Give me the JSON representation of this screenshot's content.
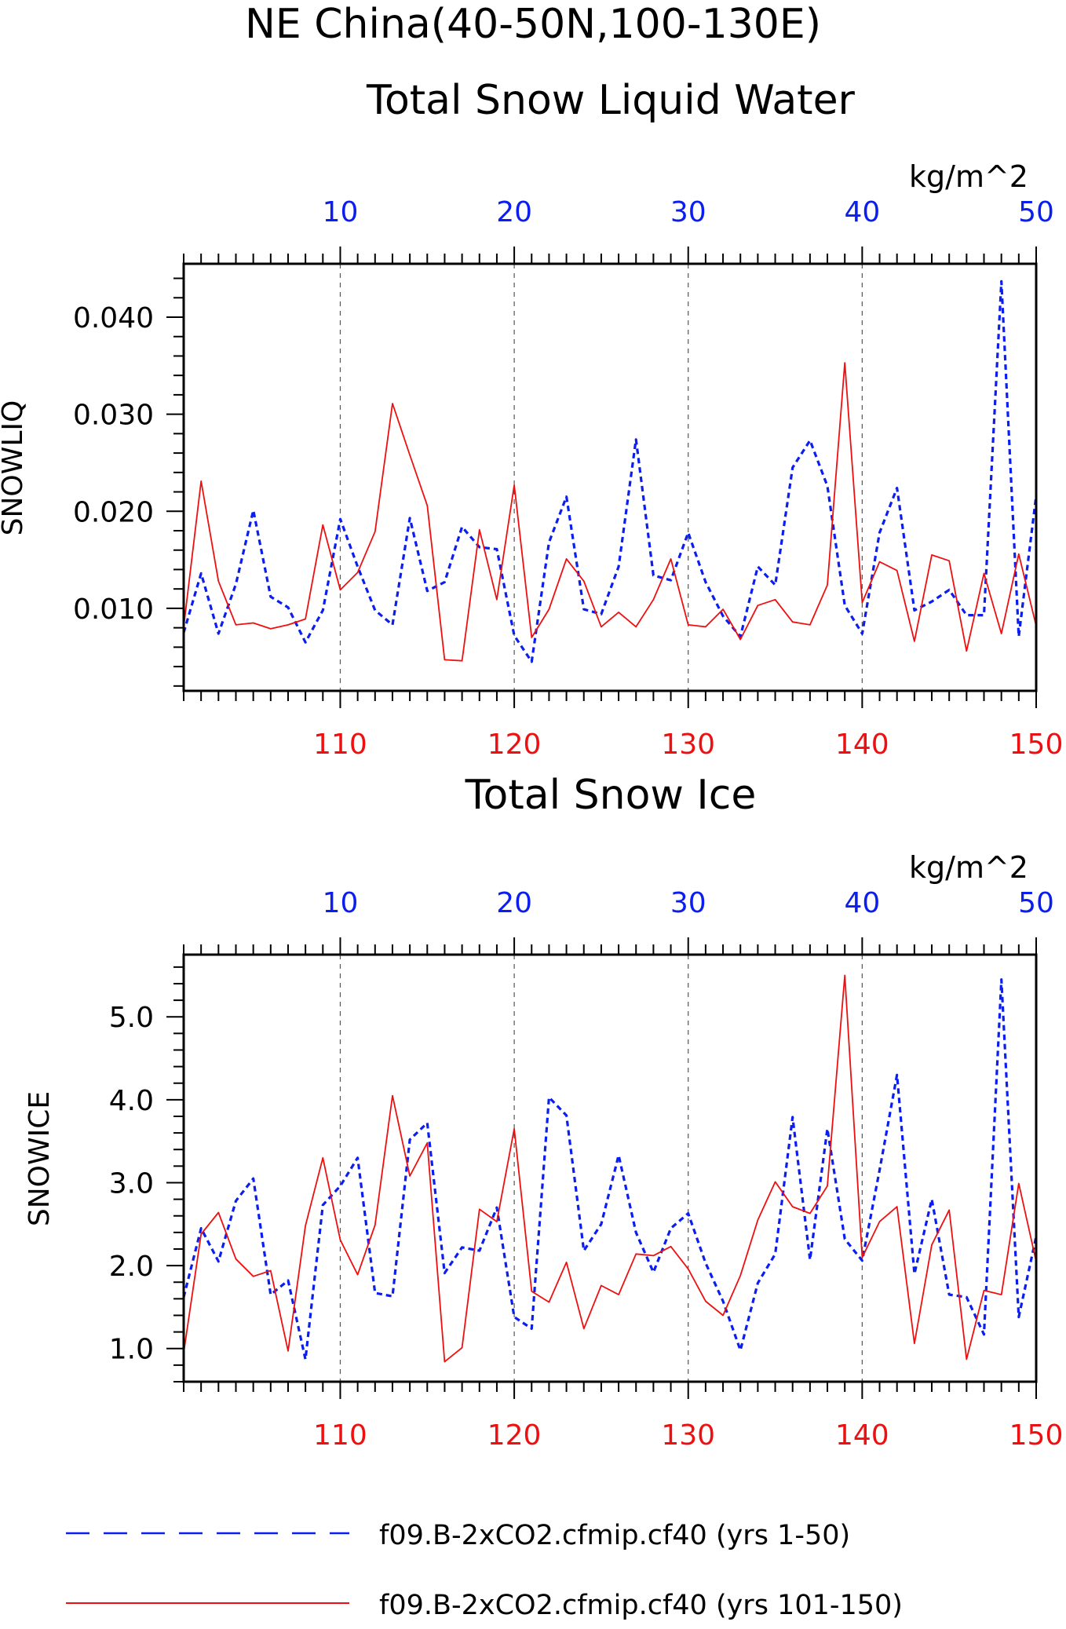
{
  "page": {
    "title_line1": "NE China(40-50N,100-130E)"
  },
  "colors": {
    "blue": "#0b1ef0",
    "red": "#ee1010",
    "axis": "#000000"
  },
  "legend": [
    {
      "label": "f09.B-2xCO2.cfmip.cf40 (yrs 1-50)",
      "color": "#0b1ef0",
      "style": "dashed"
    },
    {
      "label": "f09.B-2xCO2.cfmip.cf40 (yrs 101-150)",
      "color": "#ee1010",
      "style": "solid"
    }
  ],
  "chart_data": [
    {
      "type": "line",
      "title": "Total Snow Liquid Water",
      "ylabel": "SNOWLIQ",
      "units": "kg/m^2",
      "top_axis": {
        "ticks": [
          10,
          20,
          30,
          40,
          50
        ],
        "labels": [
          "10",
          "20",
          "30",
          "40",
          "50"
        ],
        "range": [
          1,
          50
        ]
      },
      "bottom_axis": {
        "ticks": [
          110,
          120,
          130,
          140,
          150
        ],
        "labels": [
          "110",
          "120",
          "130",
          "140",
          "150"
        ],
        "range": [
          101,
          150
        ]
      },
      "ylim": [
        0.0015,
        0.0455
      ],
      "yticks": [
        0.01,
        0.02,
        0.03,
        0.04
      ],
      "ytick_labels": [
        "0.010",
        "0.020",
        "0.030",
        "0.040"
      ],
      "ytick_minor_step": 0.002,
      "grid": "dashed vertical at labeled ticks",
      "series": [
        {
          "name": "f09.B-2xCO2.cfmip.cf40 (yrs 1-50)",
          "axis": "top",
          "style": "dashed",
          "x": [
            1,
            2,
            3,
            4,
            5,
            6,
            7,
            8,
            9,
            10,
            11,
            12,
            13,
            14,
            15,
            16,
            17,
            18,
            19,
            20,
            21,
            22,
            23,
            24,
            25,
            26,
            27,
            28,
            29,
            30,
            31,
            32,
            33,
            34,
            35,
            36,
            37,
            38,
            39,
            40,
            41,
            42,
            43,
            44,
            45,
            46,
            47,
            48,
            49,
            50
          ],
          "values": [
            0.0075,
            0.0136,
            0.0074,
            0.0125,
            0.0201,
            0.0112,
            0.0101,
            0.0065,
            0.0098,
            0.0192,
            0.0143,
            0.0098,
            0.0083,
            0.0193,
            0.0118,
            0.0127,
            0.0184,
            0.0163,
            0.0161,
            0.0072,
            0.0045,
            0.0168,
            0.0215,
            0.0099,
            0.0094,
            0.0143,
            0.0274,
            0.0134,
            0.0129,
            0.0178,
            0.0127,
            0.0092,
            0.0071,
            0.0143,
            0.0124,
            0.0245,
            0.0273,
            0.0226,
            0.0103,
            0.0074,
            0.0178,
            0.0224,
            0.0098,
            0.0107,
            0.0119,
            0.0093,
            0.0093,
            0.0437,
            0.0071,
            0.0216
          ]
        },
        {
          "name": "f09.B-2xCO2.cfmip.cf40 (yrs 101-150)",
          "axis": "bottom",
          "style": "solid",
          "x": [
            101,
            102,
            103,
            104,
            105,
            106,
            107,
            108,
            109,
            110,
            111,
            112,
            113,
            114,
            115,
            116,
            117,
            118,
            119,
            120,
            121,
            122,
            123,
            124,
            125,
            126,
            127,
            128,
            129,
            130,
            131,
            132,
            133,
            134,
            135,
            136,
            137,
            138,
            139,
            140,
            141,
            142,
            143,
            144,
            145,
            146,
            147,
            148,
            149,
            150
          ],
          "values": [
            0.0081,
            0.0231,
            0.0128,
            0.0083,
            0.0085,
            0.0079,
            0.0083,
            0.0089,
            0.0186,
            0.0119,
            0.0137,
            0.0179,
            0.0311,
            0.0258,
            0.0206,
            0.0047,
            0.0046,
            0.0181,
            0.0109,
            0.0227,
            0.007,
            0.0099,
            0.0151,
            0.0128,
            0.0081,
            0.0096,
            0.0081,
            0.0109,
            0.0151,
            0.0083,
            0.0081,
            0.0099,
            0.0068,
            0.0103,
            0.0109,
            0.0086,
            0.0083,
            0.0124,
            0.0353,
            0.0106,
            0.0148,
            0.0139,
            0.0066,
            0.0155,
            0.0149,
            0.0056,
            0.0136,
            0.0074,
            0.0156,
            0.0082
          ]
        }
      ]
    },
    {
      "type": "line",
      "title": "Total Snow Ice",
      "ylabel": "SNOWICE",
      "units": "kg/m^2",
      "top_axis": {
        "ticks": [
          10,
          20,
          30,
          40,
          50
        ],
        "labels": [
          "10",
          "20",
          "30",
          "40",
          "50"
        ],
        "range": [
          1,
          50
        ]
      },
      "bottom_axis": {
        "ticks": [
          110,
          120,
          130,
          140,
          150
        ],
        "labels": [
          "110",
          "120",
          "130",
          "140",
          "150"
        ],
        "range": [
          101,
          150
        ]
      },
      "ylim": [
        0.6,
        5.75
      ],
      "yticks": [
        1.0,
        2.0,
        3.0,
        4.0,
        5.0
      ],
      "ytick_labels": [
        "1.0",
        "2.0",
        "3.0",
        "4.0",
        "5.0"
      ],
      "ytick_minor_step": 0.2,
      "grid": "dashed vertical at labeled ticks",
      "series": [
        {
          "name": "f09.B-2xCO2.cfmip.cf40 (yrs 1-50)",
          "axis": "top",
          "style": "dashed",
          "x": [
            1,
            2,
            3,
            4,
            5,
            6,
            7,
            8,
            9,
            10,
            11,
            12,
            13,
            14,
            15,
            16,
            17,
            18,
            19,
            20,
            21,
            22,
            23,
            24,
            25,
            26,
            27,
            28,
            29,
            30,
            31,
            32,
            33,
            34,
            35,
            36,
            37,
            38,
            39,
            40,
            41,
            42,
            43,
            44,
            45,
            46,
            47,
            48,
            49,
            50
          ],
          "values": [
            1.62,
            2.45,
            2.05,
            2.78,
            3.05,
            1.65,
            1.82,
            0.87,
            2.73,
            2.96,
            3.3,
            1.67,
            1.63,
            3.52,
            3.72,
            1.91,
            2.22,
            2.18,
            2.7,
            1.38,
            1.24,
            4.03,
            3.81,
            2.18,
            2.5,
            3.33,
            2.4,
            1.92,
            2.45,
            2.63,
            2.03,
            1.57,
            0.98,
            1.79,
            2.14,
            3.79,
            2.07,
            3.65,
            2.32,
            2.06,
            3.15,
            4.3,
            1.9,
            2.8,
            1.65,
            1.62,
            1.17,
            5.45,
            1.38,
            2.35
          ]
        },
        {
          "name": "f09.B-2xCO2.cfmip.cf40 (yrs 101-150)",
          "axis": "bottom",
          "style": "solid",
          "x": [
            101,
            102,
            103,
            104,
            105,
            106,
            107,
            108,
            109,
            110,
            111,
            112,
            113,
            114,
            115,
            116,
            117,
            118,
            119,
            120,
            121,
            122,
            123,
            124,
            125,
            126,
            127,
            128,
            129,
            130,
            131,
            132,
            133,
            134,
            135,
            136,
            137,
            138,
            139,
            140,
            141,
            142,
            143,
            144,
            145,
            146,
            147,
            148,
            149,
            150
          ],
          "values": [
            0.95,
            2.38,
            2.64,
            2.08,
            1.87,
            1.94,
            0.97,
            2.48,
            3.3,
            2.31,
            1.89,
            2.49,
            4.05,
            3.08,
            3.48,
            0.84,
            1.01,
            2.68,
            2.53,
            3.65,
            1.69,
            1.56,
            2.04,
            1.24,
            1.76,
            1.65,
            2.14,
            2.12,
            2.23,
            1.96,
            1.57,
            1.4,
            1.88,
            2.55,
            3.01,
            2.71,
            2.63,
            2.96,
            5.5,
            2.1,
            2.53,
            2.71,
            1.06,
            2.25,
            2.67,
            0.87,
            1.7,
            1.65,
            2.99,
            2.05
          ]
        }
      ]
    }
  ]
}
